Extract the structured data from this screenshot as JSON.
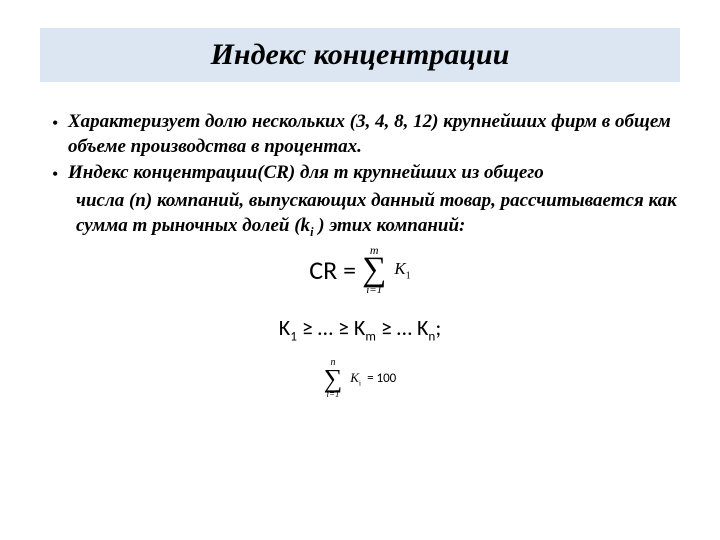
{
  "title": "Индекс концентрации",
  "bullet1": "Характеризует долю нескольких (3, 4, 8, 12) крупнейших фирм в общем объеме производства в процентах.",
  "bullet2_l1": "Индекс концентрации(CR) для m крупнейших из общего",
  "bullet2_l2": "числа (n) компаний, выпускающих данный товар, рассчитывается как сумма m рыночных долей (k",
  "bullet2_sub": "i",
  "bullet2_tail": " ) этих компаний:",
  "formula": {
    "cr_prefix": "CR =",
    "sum1_upper": "m",
    "sum1_lower": "i=1",
    "sum1_termK": "K",
    "sum1_termSub": "1",
    "ineq_K": "K",
    "ineq_s1": "1",
    "ineq_ge1": " ≥ … ≥ ",
    "ineq_sm": "m",
    "ineq_ge2": " ≥ … ",
    "ineq_sn": "n",
    "ineq_tail": ";",
    "sum2_upper": "n",
    "sum2_lower": "i=1",
    "sum2_termK": "K",
    "sum2_termSub": "i",
    "eq100": "= 100"
  },
  "colors": {
    "title_bg": "#dce6f2",
    "text": "#000000",
    "background": "#ffffff"
  }
}
